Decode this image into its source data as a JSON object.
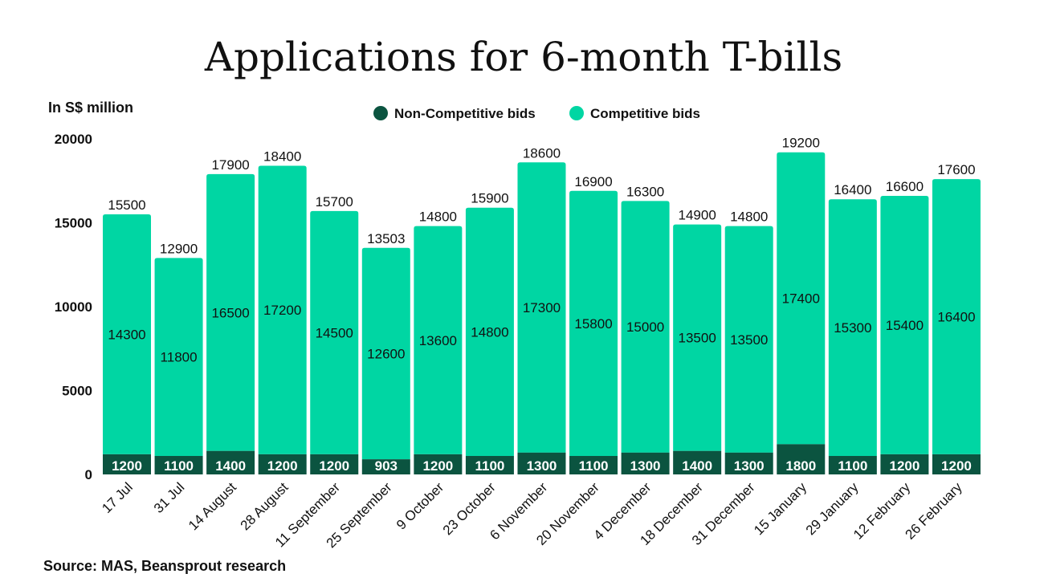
{
  "chart_data": {
    "type": "bar",
    "stacked": true,
    "title": "Applications for 6-month T-bills",
    "ylabel": "In S$ million",
    "source": "Source: MAS, Beansprout research",
    "ylim": [
      0,
      20000
    ],
    "yticks": [
      0,
      5000,
      10000,
      15000,
      20000
    ],
    "grid": false,
    "legend_position": "top",
    "categories": [
      "17 Jul",
      "31 Jul",
      "14 August",
      "28 August",
      "11 September",
      "25 September",
      "9 October",
      "23 October",
      "6 November",
      "20 November",
      "4 December",
      "18 December",
      "31 December",
      "15 January",
      "29 January",
      "12 February",
      "26 February"
    ],
    "series": [
      {
        "name": "Non-Competitive bids",
        "color": "#0b5440",
        "values": [
          1200,
          1100,
          1400,
          1200,
          1200,
          903,
          1200,
          1100,
          1300,
          1100,
          1300,
          1400,
          1300,
          1800,
          1100,
          1200,
          1200
        ]
      },
      {
        "name": "Competitive bids",
        "color": "#00d6a3",
        "values": [
          14300,
          11800,
          16500,
          17200,
          14500,
          12600,
          13600,
          14800,
          17300,
          15800,
          15000,
          13500,
          13500,
          17400,
          15300,
          15400,
          16400
        ]
      }
    ],
    "totals": [
      15500,
      12900,
      17900,
      18400,
      15700,
      13503,
      14800,
      15900,
      18600,
      16900,
      16300,
      14900,
      14800,
      19200,
      16400,
      16600,
      17600
    ]
  }
}
